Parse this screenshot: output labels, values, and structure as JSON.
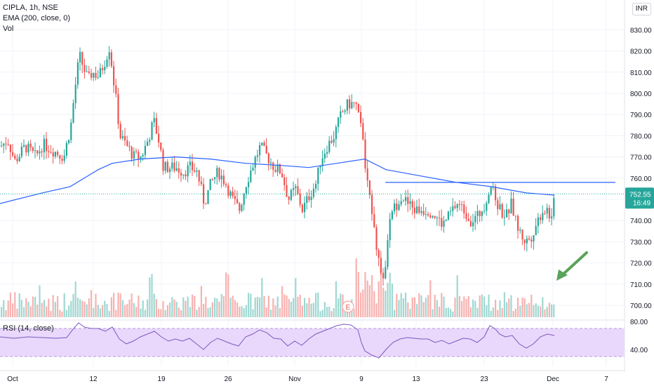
{
  "header": {
    "title": "CIPLA, 1h, NSE",
    "indicator": "EMA (200, close, 0)",
    "volume_label": "Vol",
    "currency": "INR"
  },
  "price_label": {
    "value": "752.55",
    "time": "16:49"
  },
  "rsi_label": "RSI (14, close)",
  "earnings_marker": "E",
  "colors": {
    "up": "#26a69a",
    "down": "#ef5350",
    "ema": "#2962ff",
    "rsi": "#7e57c2",
    "rsi_band": "#e9d8fb",
    "hline": "#2962ff",
    "arrow": "#5aa35a"
  },
  "chart_data": {
    "type": "candlestick",
    "symbol": "CIPLA",
    "interval": "1h",
    "exchange": "NSE",
    "y_ticks": [
      700,
      710,
      720,
      730,
      740,
      750,
      760,
      770,
      780,
      790,
      800,
      810,
      820,
      830
    ],
    "rsi_ticks": [
      40,
      80
    ],
    "x_ticks": [
      "Oct",
      "12",
      "19",
      "26",
      "Nov",
      "9",
      "13",
      "23",
      "Dec",
      "7"
    ],
    "horizontal_line": 758,
    "last_price": 752.55,
    "ema200_path": [
      [
        0,
        748
      ],
      [
        60,
        753
      ],
      [
        100,
        756
      ],
      [
        140,
        764
      ],
      [
        160,
        767
      ],
      [
        200,
        769
      ],
      [
        250,
        770
      ],
      [
        300,
        769
      ],
      [
        350,
        767
      ],
      [
        400,
        766
      ],
      [
        440,
        765
      ],
      [
        480,
        767
      ],
      [
        520,
        769
      ],
      [
        550,
        764
      ],
      [
        600,
        761
      ],
      [
        650,
        758
      ],
      [
        700,
        756
      ],
      [
        750,
        753
      ],
      [
        790,
        752
      ]
    ],
    "price_path": [
      [
        0,
        775
      ],
      [
        10,
        778
      ],
      [
        20,
        768
      ],
      [
        35,
        775
      ],
      [
        50,
        770
      ],
      [
        60,
        776
      ],
      [
        75,
        773
      ],
      [
        90,
        770
      ],
      [
        100,
        785
      ],
      [
        105,
        800
      ],
      [
        112,
        818
      ],
      [
        118,
        812
      ],
      [
        125,
        806
      ],
      [
        130,
        810
      ],
      [
        140,
        808
      ],
      [
        148,
        815
      ],
      [
        155,
        822
      ],
      [
        160,
        808
      ],
      [
        165,
        795
      ],
      [
        170,
        780
      ],
      [
        180,
        775
      ],
      [
        190,
        770
      ],
      [
        200,
        770
      ],
      [
        210,
        778
      ],
      [
        218,
        787
      ],
      [
        225,
        778
      ],
      [
        232,
        765
      ],
      [
        240,
        765
      ],
      [
        250,
        765
      ],
      [
        260,
        763
      ],
      [
        270,
        765
      ],
      [
        280,
        763
      ],
      [
        290,
        748
      ],
      [
        300,
        758
      ],
      [
        310,
        763
      ],
      [
        320,
        758
      ],
      [
        330,
        750
      ],
      [
        340,
        745
      ],
      [
        350,
        758
      ],
      [
        360,
        767
      ],
      [
        370,
        775
      ],
      [
        380,
        770
      ],
      [
        390,
        765
      ],
      [
        400,
        763
      ],
      [
        410,
        750
      ],
      [
        420,
        755
      ],
      [
        430,
        745
      ],
      [
        440,
        752
      ],
      [
        450,
        758
      ],
      [
        455,
        768
      ],
      [
        465,
        775
      ],
      [
        475,
        780
      ],
      [
        485,
        790
      ],
      [
        495,
        795
      ],
      [
        505,
        795
      ],
      [
        512,
        790
      ],
      [
        518,
        770
      ],
      [
        525,
        750
      ],
      [
        530,
        745
      ],
      [
        535,
        730
      ],
      [
        540,
        718
      ],
      [
        545,
        710
      ],
      [
        550,
        725
      ],
      [
        555,
        740
      ],
      [
        560,
        745
      ],
      [
        570,
        752
      ],
      [
        580,
        748
      ],
      [
        590,
        745
      ],
      [
        600,
        745
      ],
      [
        610,
        745
      ],
      [
        620,
        742
      ],
      [
        630,
        738
      ],
      [
        640,
        743
      ],
      [
        650,
        748
      ],
      [
        660,
        745
      ],
      [
        670,
        740
      ],
      [
        680,
        742
      ],
      [
        690,
        748
      ],
      [
        698,
        757
      ],
      [
        705,
        750
      ],
      [
        712,
        745
      ],
      [
        720,
        742
      ],
      [
        728,
        748
      ],
      [
        735,
        738
      ],
      [
        742,
        733
      ],
      [
        748,
        730
      ],
      [
        755,
        732
      ],
      [
        765,
        740
      ],
      [
        772,
        745
      ],
      [
        780,
        745
      ],
      [
        785,
        740
      ],
      [
        790,
        752
      ]
    ],
    "rsi_path": [
      [
        0,
        58
      ],
      [
        20,
        56
      ],
      [
        40,
        58
      ],
      [
        60,
        57
      ],
      [
        80,
        56
      ],
      [
        95,
        57
      ],
      [
        105,
        70
      ],
      [
        112,
        78
      ],
      [
        120,
        72
      ],
      [
        130,
        70
      ],
      [
        140,
        70
      ],
      [
        150,
        66
      ],
      [
        160,
        72
      ],
      [
        170,
        55
      ],
      [
        180,
        48
      ],
      [
        190,
        52
      ],
      [
        200,
        58
      ],
      [
        210,
        62
      ],
      [
        220,
        66
      ],
      [
        230,
        58
      ],
      [
        240,
        52
      ],
      [
        250,
        55
      ],
      [
        260,
        52
      ],
      [
        270,
        56
      ],
      [
        280,
        48
      ],
      [
        290,
        40
      ],
      [
        300,
        50
      ],
      [
        310,
        56
      ],
      [
        320,
        52
      ],
      [
        330,
        48
      ],
      [
        340,
        45
      ],
      [
        350,
        58
      ],
      [
        360,
        62
      ],
      [
        370,
        68
      ],
      [
        380,
        64
      ],
      [
        390,
        56
      ],
      [
        400,
        55
      ],
      [
        410,
        45
      ],
      [
        420,
        52
      ],
      [
        430,
        46
      ],
      [
        440,
        55
      ],
      [
        450,
        62
      ],
      [
        460,
        66
      ],
      [
        470,
        70
      ],
      [
        480,
        74
      ],
      [
        490,
        76
      ],
      [
        500,
        75
      ],
      [
        510,
        68
      ],
      [
        515,
        50
      ],
      [
        520,
        38
      ],
      [
        530,
        32
      ],
      [
        540,
        28
      ],
      [
        550,
        40
      ],
      [
        560,
        50
      ],
      [
        570,
        55
      ],
      [
        580,
        57
      ],
      [
        590,
        56
      ],
      [
        600,
        55
      ],
      [
        610,
        55
      ],
      [
        620,
        50
      ],
      [
        630,
        53
      ],
      [
        640,
        48
      ],
      [
        650,
        52
      ],
      [
        660,
        56
      ],
      [
        670,
        55
      ],
      [
        680,
        50
      ],
      [
        690,
        58
      ],
      [
        698,
        74
      ],
      [
        705,
        70
      ],
      [
        712,
        62
      ],
      [
        720,
        58
      ],
      [
        730,
        60
      ],
      [
        740,
        48
      ],
      [
        750,
        42
      ],
      [
        760,
        48
      ],
      [
        770,
        58
      ],
      [
        780,
        62
      ],
      [
        790,
        60
      ]
    ]
  }
}
